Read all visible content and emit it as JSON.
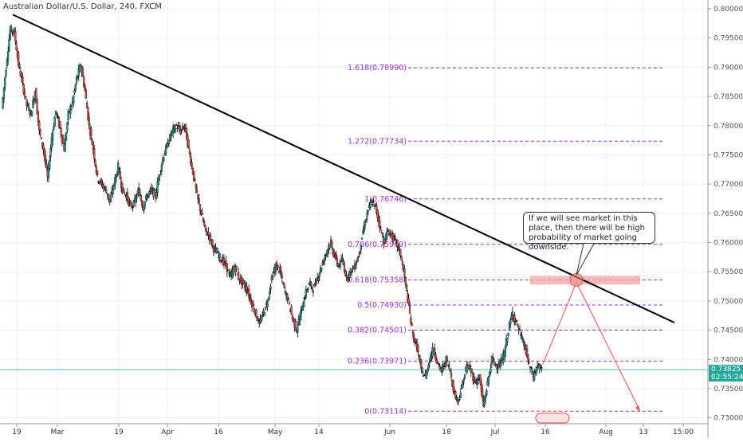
{
  "chart_data": {
    "type": "candlestick",
    "title": "Australian Dollar/U.S. Dollar, 240, FXCM",
    "y_ticks": [
      "0.80000",
      "0.79500",
      "0.79000",
      "0.78500",
      "0.78000",
      "0.77500",
      "0.77000",
      "0.76500",
      "0.76000",
      "0.75500",
      "0.75000",
      "0.74500",
      "0.74000",
      "0.73500",
      "0.73000"
    ],
    "ylim": [
      0.729,
      0.8015
    ],
    "x_ticks": [
      "19",
      "Mar",
      "19",
      "Apr",
      "16",
      "May",
      "14",
      "Jun",
      "18",
      "Jul",
      "16",
      "Aug",
      "13",
      "15:00"
    ],
    "current_price": {
      "value": "0.73825",
      "countdown": "02:55:24",
      "color": "#26a69a"
    },
    "fib_levels": [
      {
        "label": "1.618(0.78990)",
        "value": 0.7899
      },
      {
        "label": "1.272(0.77734)",
        "value": 0.77734
      },
      {
        "label": "1(0.76746)",
        "value": 0.76746
      },
      {
        "label": "0.786(0.75969)",
        "value": 0.75969
      },
      {
        "label": "0.618(0.75358)",
        "value": 0.75358
      },
      {
        "label": "0.5(0.74930)",
        "value": 0.7493
      },
      {
        "label": "0.382(0.74501)",
        "value": 0.74501
      },
      {
        "label": "0.236(0.73971)",
        "value": 0.73971
      },
      {
        "label": "0(0.73114)",
        "value": 0.73114
      }
    ],
    "trendline": {
      "from": [
        0.0,
        0.799
      ],
      "to": [
        1.0,
        0.7463
      ]
    },
    "annotation": "If we will see market in this place, then there will be high probability of market going downside.",
    "colors": {
      "up": "#26a69a",
      "down": "#ef5350",
      "wick": "#000000",
      "fib": "#9b30d9",
      "zone": "#f4a0a0",
      "arrow": "#ef5350",
      "trend": "#000000"
    },
    "price_path": [
      0.783,
      0.79,
      0.7965,
      0.796,
      0.7905,
      0.787,
      0.7835,
      0.782,
      0.786,
      0.779,
      0.776,
      0.771,
      0.778,
      0.7825,
      0.7795,
      0.776,
      0.782,
      0.784,
      0.788,
      0.7905,
      0.786,
      0.78,
      0.776,
      0.771,
      0.77,
      0.769,
      0.767,
      0.77,
      0.773,
      0.769,
      0.768,
      0.766,
      0.767,
      0.769,
      0.766,
      0.768,
      0.769,
      0.768,
      0.772,
      0.775,
      0.777,
      0.779,
      0.78,
      0.779,
      0.78,
      0.776,
      0.772,
      0.768,
      0.765,
      0.762,
      0.761,
      0.759,
      0.758,
      0.757,
      0.756,
      0.754,
      0.756,
      0.754,
      0.753,
      0.752,
      0.75,
      0.748,
      0.746,
      0.748,
      0.75,
      0.754,
      0.756,
      0.755,
      0.752,
      0.75,
      0.747,
      0.745,
      0.748,
      0.751,
      0.753,
      0.752,
      0.754,
      0.756,
      0.758,
      0.76,
      0.758,
      0.756,
      0.757,
      0.754,
      0.755,
      0.756,
      0.758,
      0.762,
      0.765,
      0.767,
      0.766,
      0.763,
      0.76,
      0.762,
      0.761,
      0.76,
      0.758,
      0.754,
      0.749,
      0.744,
      0.742,
      0.738,
      0.737,
      0.74,
      0.742,
      0.739,
      0.738,
      0.74,
      0.738,
      0.734,
      0.733,
      0.736,
      0.739,
      0.738,
      0.736,
      0.737,
      0.732,
      0.736,
      0.74,
      0.739,
      0.739,
      0.741,
      0.745,
      0.748,
      0.746,
      0.744,
      0.742,
      0.739,
      0.737,
      0.739,
      0.7382
    ]
  }
}
